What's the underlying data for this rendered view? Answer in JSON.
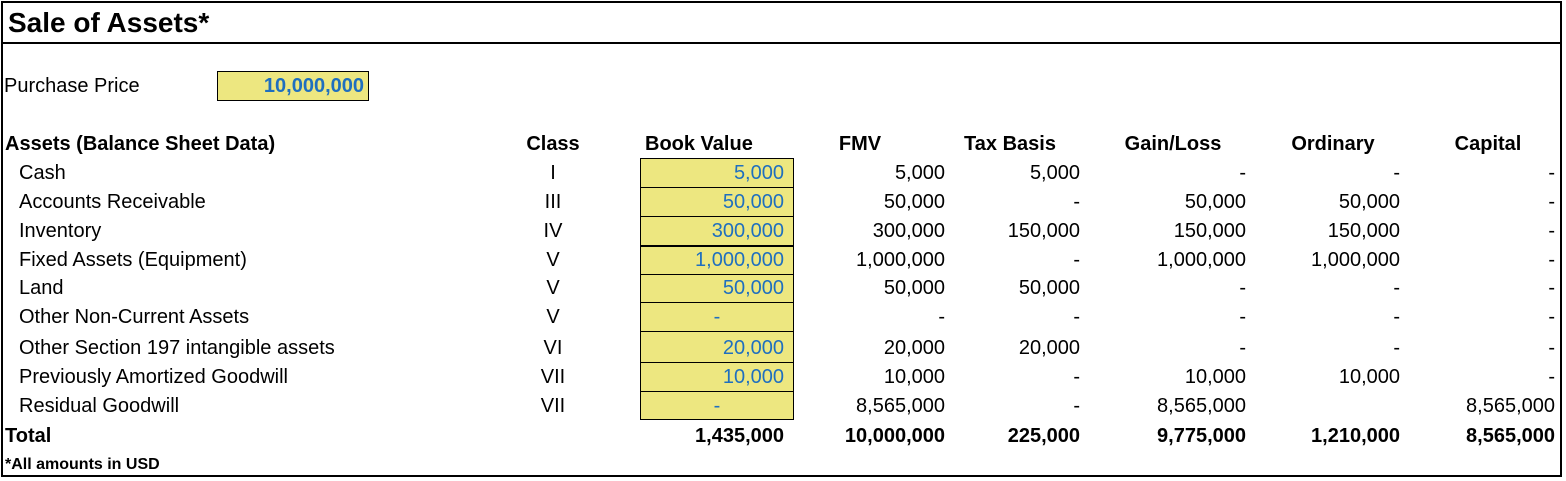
{
  "title": "Sale of Assets*",
  "purchase_price": {
    "label": "Purchase Price",
    "value": "10,000,000"
  },
  "table": {
    "headers": {
      "assets": "Assets (Balance Sheet Data)",
      "class": "Class",
      "book_value": "Book Value",
      "fmv": "FMV",
      "tax_basis": "Tax Basis",
      "gain_loss": "Gain/Loss",
      "ordinary": "Ordinary",
      "capital": "Capital"
    },
    "rows": [
      {
        "asset": "Cash",
        "class": "I",
        "book_value": "5,000",
        "fmv": "5,000",
        "tax_basis": "5,000",
        "gain_loss": "-",
        "ordinary": "-",
        "capital": "-"
      },
      {
        "asset": "Accounts Receivable",
        "class": "III",
        "book_value": "50,000",
        "fmv": "50,000",
        "tax_basis": "-",
        "gain_loss": "50,000",
        "ordinary": "50,000",
        "capital": "-"
      },
      {
        "asset": "Inventory",
        "class": "IV",
        "book_value": "300,000",
        "fmv": "300,000",
        "tax_basis": "150,000",
        "gain_loss": "150,000",
        "ordinary": "150,000",
        "capital": "-"
      },
      {
        "asset": "Fixed Assets (Equipment)",
        "class": "V",
        "book_value": "1,000,000",
        "fmv": "1,000,000",
        "tax_basis": "-",
        "gain_loss": "1,000,000",
        "ordinary": "1,000,000",
        "capital": "-"
      },
      {
        "asset": "Land",
        "class": "V",
        "book_value": "50,000",
        "fmv": "50,000",
        "tax_basis": "50,000",
        "gain_loss": "-",
        "ordinary": "-",
        "capital": "-"
      },
      {
        "asset": "Other Non-Current Assets",
        "class": "V",
        "book_value": "-",
        "fmv": "-",
        "tax_basis": "-",
        "gain_loss": "-",
        "ordinary": "-",
        "capital": "-"
      },
      {
        "asset": "Other Section 197 intangible assets",
        "class": "VI",
        "book_value": "20,000",
        "fmv": "20,000",
        "tax_basis": "20,000",
        "gain_loss": "-",
        "ordinary": "-",
        "capital": "-"
      },
      {
        "asset": "Previously Amortized Goodwill",
        "class": "VII",
        "book_value": "10,000",
        "fmv": "10,000",
        "tax_basis": "-",
        "gain_loss": "10,000",
        "ordinary": "10,000",
        "capital": "-"
      },
      {
        "asset": "Residual Goodwill",
        "class": "VII",
        "book_value": "-",
        "fmv": "8,565,000",
        "tax_basis": "-",
        "gain_loss": "8,565,000",
        "ordinary": "",
        "capital": "8,565,000"
      }
    ],
    "total": {
      "label": "Total",
      "book_value": "1,435,000",
      "fmv": "10,000,000",
      "tax_basis": "225,000",
      "gain_loss": "9,775,000",
      "ordinary": "1,210,000",
      "capital": "8,565,000"
    }
  },
  "footnote": "*All amounts in USD",
  "colors": {
    "input_fill": "#ede780",
    "input_text": "#1f6fbf"
  }
}
